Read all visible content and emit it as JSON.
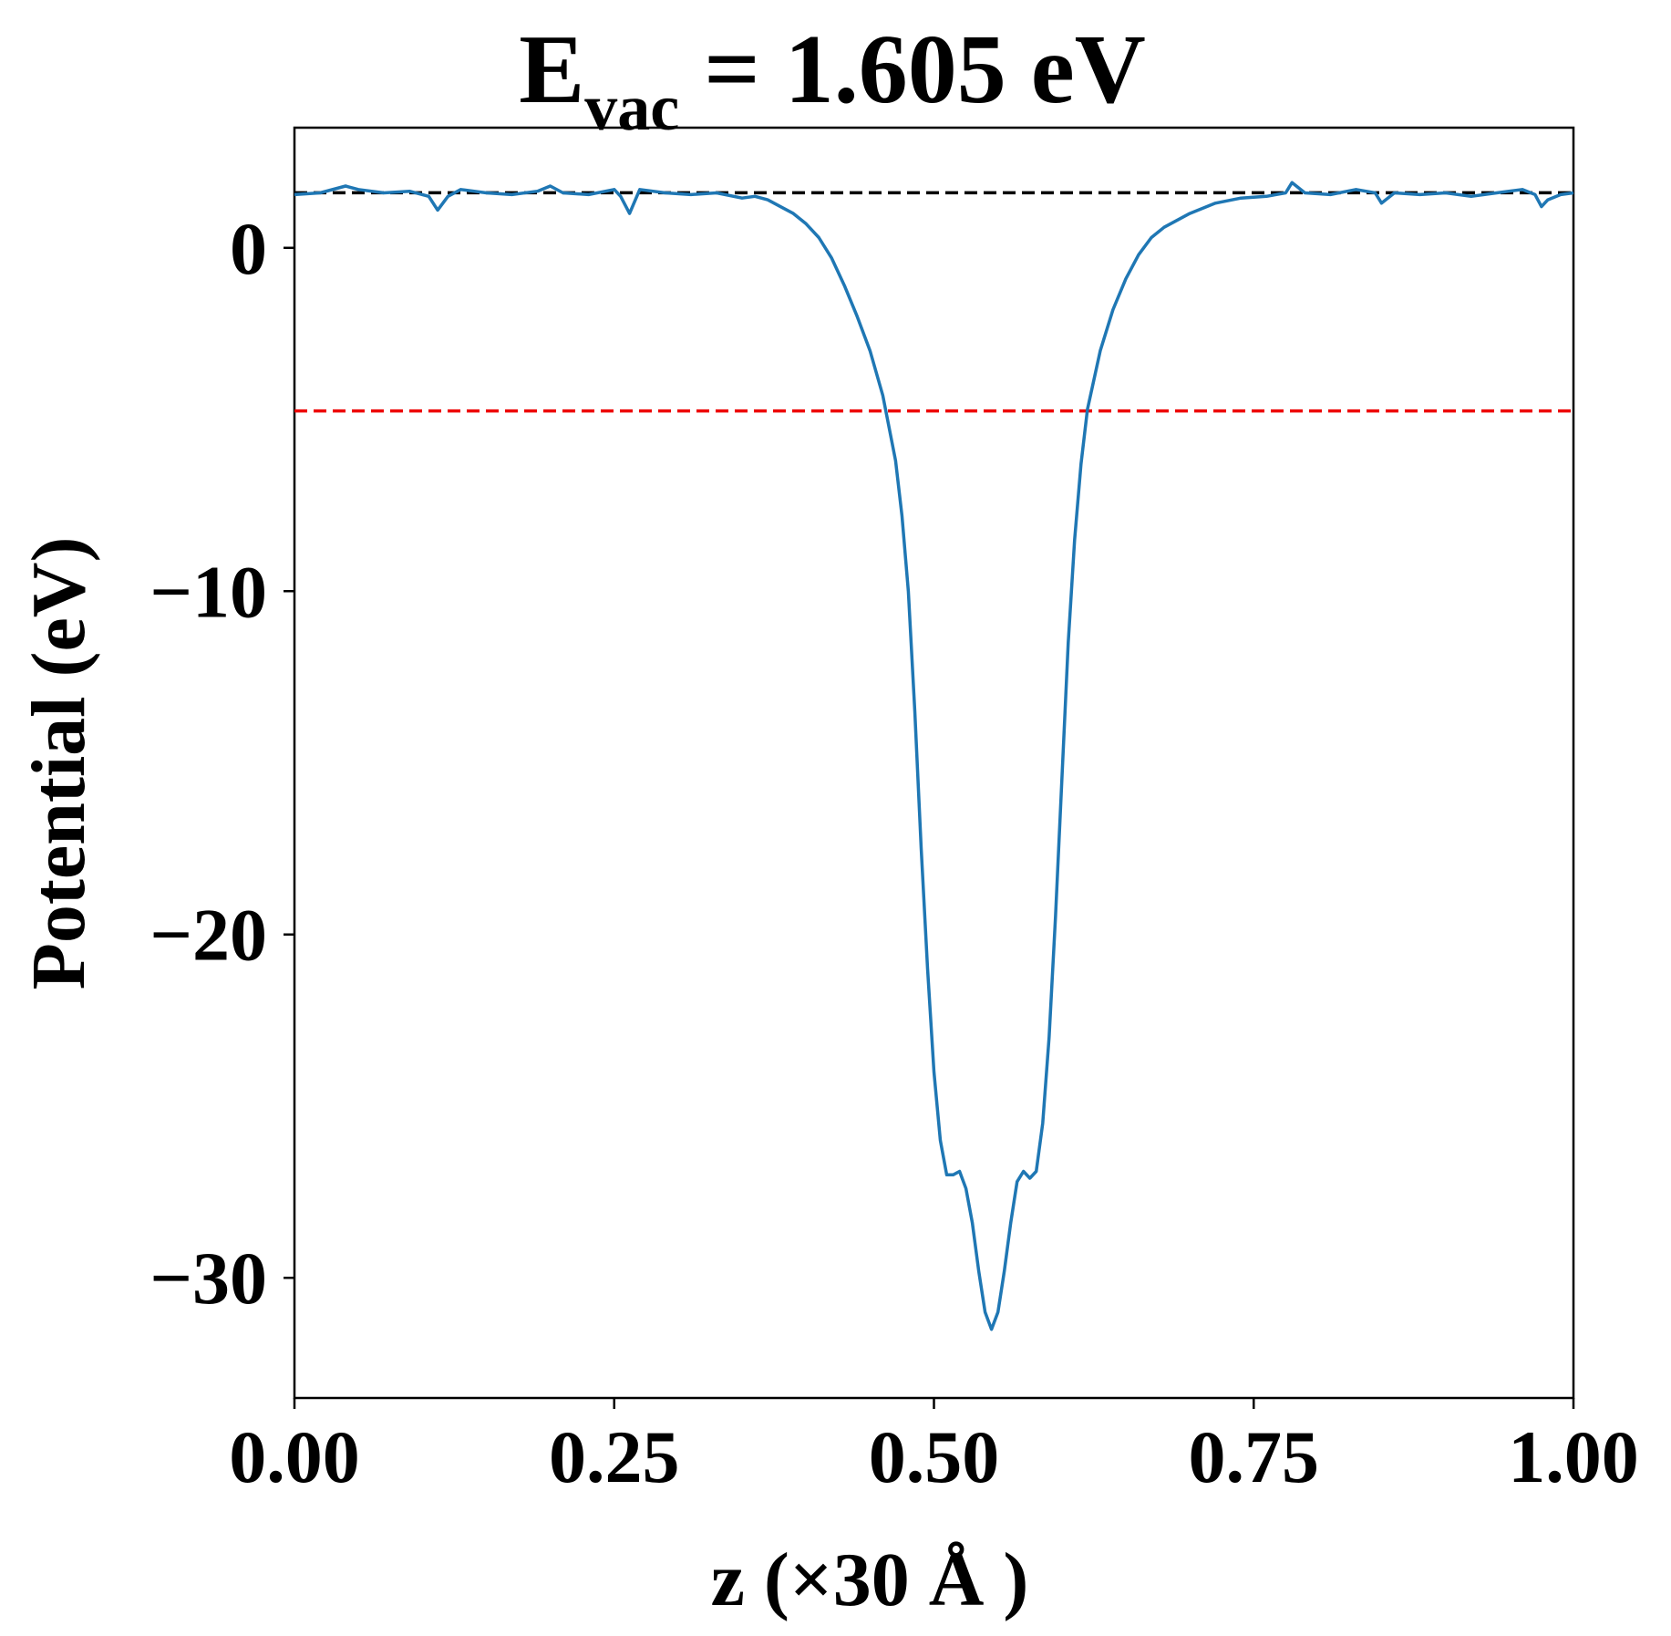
{
  "chart_data": {
    "type": "line",
    "title": {
      "main": "E",
      "subscript": "vac",
      "rest": " = 1.605 eV"
    },
    "xlabel": "z (×30 Å )",
    "ylabel": "Potential (eV)",
    "xlim": [
      0,
      1
    ],
    "ylim": [
      -33.5,
      3.5
    ],
    "x_ticks": [
      {
        "value": 0.0,
        "label": "0.00"
      },
      {
        "value": 0.25,
        "label": "0.25"
      },
      {
        "value": 0.5,
        "label": "0.50"
      },
      {
        "value": 0.75,
        "label": "0.75"
      },
      {
        "value": 1.0,
        "label": "1.00"
      }
    ],
    "y_ticks": [
      {
        "value": 0,
        "label": "0"
      },
      {
        "value": -10,
        "label": "−10"
      },
      {
        "value": -20,
        "label": "−20"
      },
      {
        "value": -30,
        "label": "−30"
      }
    ],
    "grid": false,
    "reference_lines": [
      {
        "y": 1.605,
        "color": "#000000",
        "style": "dashed"
      },
      {
        "y": -4.75,
        "color": "#ee0000",
        "style": "dashed"
      }
    ],
    "series": [
      {
        "color": "#1f77b4",
        "points": [
          [
            0.0,
            1.55
          ],
          [
            0.02,
            1.6
          ],
          [
            0.04,
            1.8
          ],
          [
            0.05,
            1.7
          ],
          [
            0.07,
            1.6
          ],
          [
            0.09,
            1.65
          ],
          [
            0.105,
            1.5
          ],
          [
            0.112,
            1.1
          ],
          [
            0.12,
            1.5
          ],
          [
            0.13,
            1.7
          ],
          [
            0.15,
            1.6
          ],
          [
            0.17,
            1.55
          ],
          [
            0.19,
            1.65
          ],
          [
            0.2,
            1.8
          ],
          [
            0.21,
            1.6
          ],
          [
            0.23,
            1.55
          ],
          [
            0.25,
            1.7
          ],
          [
            0.255,
            1.5
          ],
          [
            0.262,
            1.0
          ],
          [
            0.27,
            1.7
          ],
          [
            0.29,
            1.6
          ],
          [
            0.31,
            1.55
          ],
          [
            0.33,
            1.6
          ],
          [
            0.35,
            1.45
          ],
          [
            0.36,
            1.5
          ],
          [
            0.37,
            1.4
          ],
          [
            0.38,
            1.2
          ],
          [
            0.39,
            1.0
          ],
          [
            0.4,
            0.7
          ],
          [
            0.41,
            0.3
          ],
          [
            0.42,
            -0.3
          ],
          [
            0.43,
            -1.1
          ],
          [
            0.44,
            -2.0
          ],
          [
            0.45,
            -3.0
          ],
          [
            0.46,
            -4.3
          ],
          [
            0.47,
            -6.2
          ],
          [
            0.475,
            -7.8
          ],
          [
            0.48,
            -10.0
          ],
          [
            0.485,
            -13.5
          ],
          [
            0.49,
            -17.5
          ],
          [
            0.495,
            -21.0
          ],
          [
            0.5,
            -24.0
          ],
          [
            0.505,
            -26.0
          ],
          [
            0.51,
            -27.0
          ],
          [
            0.515,
            -27.0
          ],
          [
            0.52,
            -26.9
          ],
          [
            0.525,
            -27.4
          ],
          [
            0.53,
            -28.4
          ],
          [
            0.535,
            -29.8
          ],
          [
            0.54,
            -31.0
          ],
          [
            0.545,
            -31.5
          ],
          [
            0.55,
            -31.0
          ],
          [
            0.555,
            -29.8
          ],
          [
            0.56,
            -28.4
          ],
          [
            0.565,
            -27.2
          ],
          [
            0.57,
            -26.9
          ],
          [
            0.575,
            -27.1
          ],
          [
            0.58,
            -26.9
          ],
          [
            0.585,
            -25.5
          ],
          [
            0.59,
            -23.0
          ],
          [
            0.595,
            -19.5
          ],
          [
            0.6,
            -15.5
          ],
          [
            0.605,
            -11.5
          ],
          [
            0.61,
            -8.5
          ],
          [
            0.615,
            -6.3
          ],
          [
            0.62,
            -4.7
          ],
          [
            0.63,
            -3.0
          ],
          [
            0.64,
            -1.8
          ],
          [
            0.65,
            -0.9
          ],
          [
            0.66,
            -0.2
          ],
          [
            0.67,
            0.3
          ],
          [
            0.68,
            0.6
          ],
          [
            0.7,
            1.0
          ],
          [
            0.72,
            1.3
          ],
          [
            0.74,
            1.45
          ],
          [
            0.76,
            1.5
          ],
          [
            0.775,
            1.6
          ],
          [
            0.78,
            1.9
          ],
          [
            0.79,
            1.6
          ],
          [
            0.81,
            1.55
          ],
          [
            0.83,
            1.7
          ],
          [
            0.845,
            1.6
          ],
          [
            0.85,
            1.3
          ],
          [
            0.86,
            1.6
          ],
          [
            0.88,
            1.55
          ],
          [
            0.9,
            1.6
          ],
          [
            0.92,
            1.5
          ],
          [
            0.94,
            1.6
          ],
          [
            0.96,
            1.7
          ],
          [
            0.97,
            1.55
          ],
          [
            0.975,
            1.2
          ],
          [
            0.98,
            1.4
          ],
          [
            0.99,
            1.55
          ],
          [
            1.0,
            1.6
          ]
        ]
      }
    ]
  }
}
